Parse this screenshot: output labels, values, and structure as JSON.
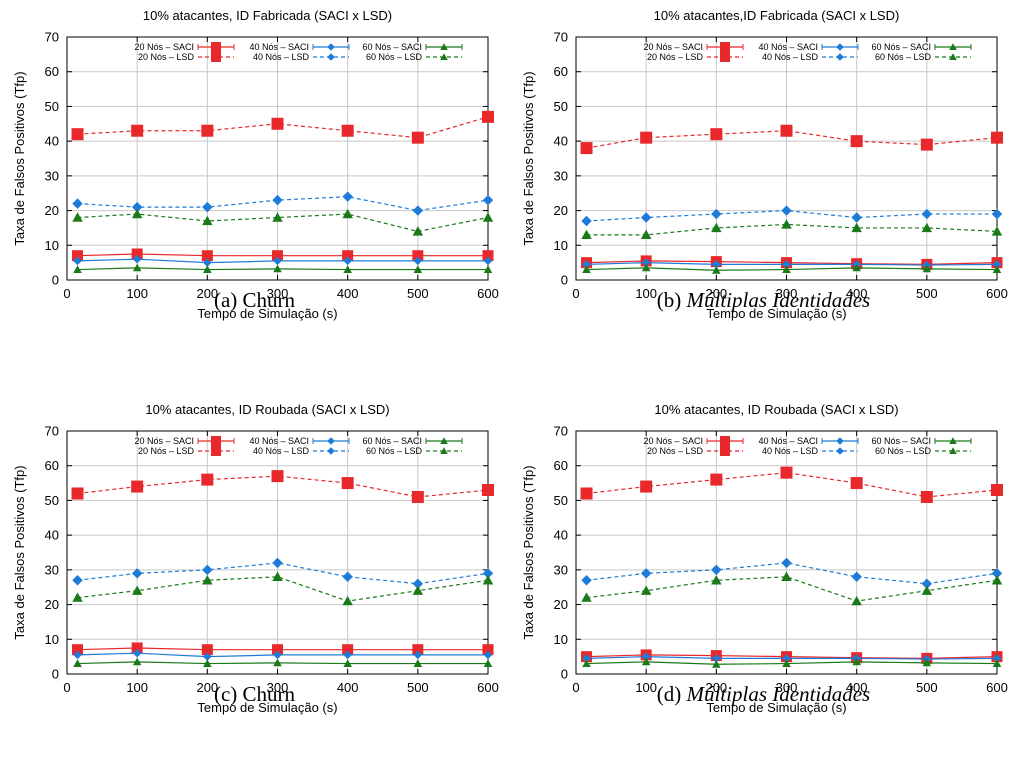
{
  "series_style": [
    {
      "name": "20 Nós – SACI",
      "color": "#e8282b",
      "marker": "square",
      "dashed": false
    },
    {
      "name": "20 Nós – LSD",
      "color": "#e8282b",
      "marker": "square",
      "dashed": true
    },
    {
      "name": "40 Nós – SACI",
      "color": "#1f7bd8",
      "marker": "diamond",
      "dashed": false
    },
    {
      "name": "40 Nós – LSD",
      "color": "#1f7bd8",
      "marker": "diamond",
      "dashed": true
    },
    {
      "name": "60 Nós – SACI",
      "color": "#1a7a1a",
      "marker": "triangle",
      "dashed": false
    },
    {
      "name": "60 Nós – LSD",
      "color": "#1a7a1a",
      "marker": "triangle",
      "dashed": true
    }
  ],
  "chart_data": [
    {
      "type": "line",
      "title": "10% atacantes, ID Fabricada (SACI x LSD)",
      "caption_label": "(a)",
      "caption_text": "Churn",
      "caption_italic": false,
      "xlabel": "Tempo de Simulação (s)",
      "ylabel": "Taxa de Falsos Positivos (Tfp)",
      "xlim": [
        0,
        600
      ],
      "ylim": [
        0,
        70
      ],
      "xticks": [
        0,
        100,
        200,
        300,
        400,
        500,
        600
      ],
      "yticks": [
        0,
        10,
        20,
        30,
        40,
        50,
        60,
        70
      ],
      "grid": true,
      "legend": "top",
      "x": [
        15,
        100,
        200,
        300,
        400,
        500,
        600
      ],
      "series": [
        {
          "name": "20 Nós – SACI",
          "values": [
            7,
            7.5,
            7,
            7,
            7,
            7,
            7
          ]
        },
        {
          "name": "20 Nós – LSD",
          "values": [
            42,
            43,
            43,
            45,
            43,
            41,
            47
          ]
        },
        {
          "name": "40 Nós – SACI",
          "values": [
            5.5,
            6,
            5,
            5.5,
            5.5,
            5.5,
            5.5
          ]
        },
        {
          "name": "40 Nós – LSD",
          "values": [
            22,
            21,
            21,
            23,
            24,
            20,
            23
          ]
        },
        {
          "name": "60 Nós – SACI",
          "values": [
            3,
            3.5,
            3,
            3.2,
            3,
            3,
            3
          ]
        },
        {
          "name": "60 Nós – LSD",
          "values": [
            18,
            19,
            17,
            18,
            19,
            14,
            18
          ]
        }
      ]
    },
    {
      "type": "line",
      "title": "10% atacantes,ID Fabricada (SACI x LSD)",
      "caption_label": "(b)",
      "caption_text": "Múltiplas Identidades",
      "caption_italic": true,
      "xlabel": "Tempo de Simulação (s)",
      "ylabel": "Taxa de Falsos Positivos (Tfp)",
      "xlim": [
        0,
        600
      ],
      "ylim": [
        0,
        70
      ],
      "xticks": [
        0,
        100,
        200,
        300,
        400,
        500,
        600
      ],
      "yticks": [
        0,
        10,
        20,
        30,
        40,
        50,
        60,
        70
      ],
      "grid": true,
      "legend": "top",
      "x": [
        15,
        100,
        200,
        300,
        400,
        500,
        600
      ],
      "series": [
        {
          "name": "20 Nós – SACI",
          "values": [
            5,
            5.5,
            5.3,
            5,
            4.7,
            4.5,
            5
          ]
        },
        {
          "name": "20 Nós – LSD",
          "values": [
            38,
            41,
            42,
            43,
            40,
            39,
            41
          ]
        },
        {
          "name": "40 Nós – SACI",
          "values": [
            4.5,
            5,
            4.5,
            4.5,
            4.5,
            4.3,
            4.5
          ]
        },
        {
          "name": "40 Nós – LSD",
          "values": [
            17,
            18,
            19,
            20,
            18,
            19,
            19
          ]
        },
        {
          "name": "60 Nós – SACI",
          "values": [
            3,
            3.5,
            2.8,
            3,
            3.5,
            3.2,
            3
          ]
        },
        {
          "name": "60 Nós – LSD",
          "values": [
            13,
            13,
            15,
            16,
            15,
            15,
            14
          ]
        }
      ]
    },
    {
      "type": "line",
      "title": "10% atacantes, ID Roubada (SACI x LSD)",
      "caption_label": "(c)",
      "caption_text": "Churn",
      "caption_italic": false,
      "xlabel": "Tempo de Simulação (s)",
      "ylabel": "Taxa de Falsos Positivos (Tfp)",
      "xlim": [
        0,
        600
      ],
      "ylim": [
        0,
        70
      ],
      "xticks": [
        0,
        100,
        200,
        300,
        400,
        500,
        600
      ],
      "yticks": [
        0,
        10,
        20,
        30,
        40,
        50,
        60,
        70
      ],
      "grid": true,
      "legend": "top",
      "x": [
        15,
        100,
        200,
        300,
        400,
        500,
        600
      ],
      "series": [
        {
          "name": "20 Nós – SACI",
          "values": [
            7,
            7.5,
            7,
            7,
            7,
            7,
            7
          ]
        },
        {
          "name": "20 Nós – LSD",
          "values": [
            52,
            54,
            56,
            57,
            55,
            51,
            53
          ]
        },
        {
          "name": "40 Nós – SACI",
          "values": [
            5.5,
            6,
            5,
            5.5,
            5.5,
            5.5,
            5.5
          ]
        },
        {
          "name": "40 Nós – LSD",
          "values": [
            27,
            29,
            30,
            32,
            28,
            26,
            29
          ]
        },
        {
          "name": "60 Nós – SACI",
          "values": [
            3,
            3.5,
            3,
            3.2,
            3,
            3,
            3
          ]
        },
        {
          "name": "60 Nós – LSD",
          "values": [
            22,
            24,
            27,
            28,
            21,
            24,
            27
          ]
        }
      ]
    },
    {
      "type": "line",
      "title": "10% atacantes, ID Roubada (SACI x LSD)",
      "caption_label": "(d)",
      "caption_text": "Múltiplas Identidades",
      "caption_italic": true,
      "xlabel": "Tempo de Simulação (s)",
      "ylabel": "Taxa de Falsos Positivos (Tfp)",
      "xlim": [
        0,
        600
      ],
      "ylim": [
        0,
        70
      ],
      "xticks": [
        0,
        100,
        200,
        300,
        400,
        500,
        600
      ],
      "yticks": [
        0,
        10,
        20,
        30,
        40,
        50,
        60,
        70
      ],
      "grid": true,
      "legend": "top",
      "x": [
        15,
        100,
        200,
        300,
        400,
        500,
        600
      ],
      "series": [
        {
          "name": "20 Nós – SACI",
          "values": [
            5,
            5.5,
            5.3,
            5,
            4.7,
            4.5,
            5
          ]
        },
        {
          "name": "20 Nós – LSD",
          "values": [
            52,
            54,
            56,
            58,
            55,
            51,
            53
          ]
        },
        {
          "name": "40 Nós – SACI",
          "values": [
            4.5,
            5,
            4.5,
            4.5,
            4.5,
            4.3,
            4.5
          ]
        },
        {
          "name": "40 Nós – LSD",
          "values": [
            27,
            29,
            30,
            32,
            28,
            26,
            29
          ]
        },
        {
          "name": "60 Nós – SACI",
          "values": [
            3,
            3.5,
            2.8,
            3,
            3.5,
            3.2,
            3
          ]
        },
        {
          "name": "60 Nós – LSD",
          "values": [
            22,
            24,
            27,
            28,
            21,
            24,
            27
          ]
        }
      ]
    }
  ]
}
